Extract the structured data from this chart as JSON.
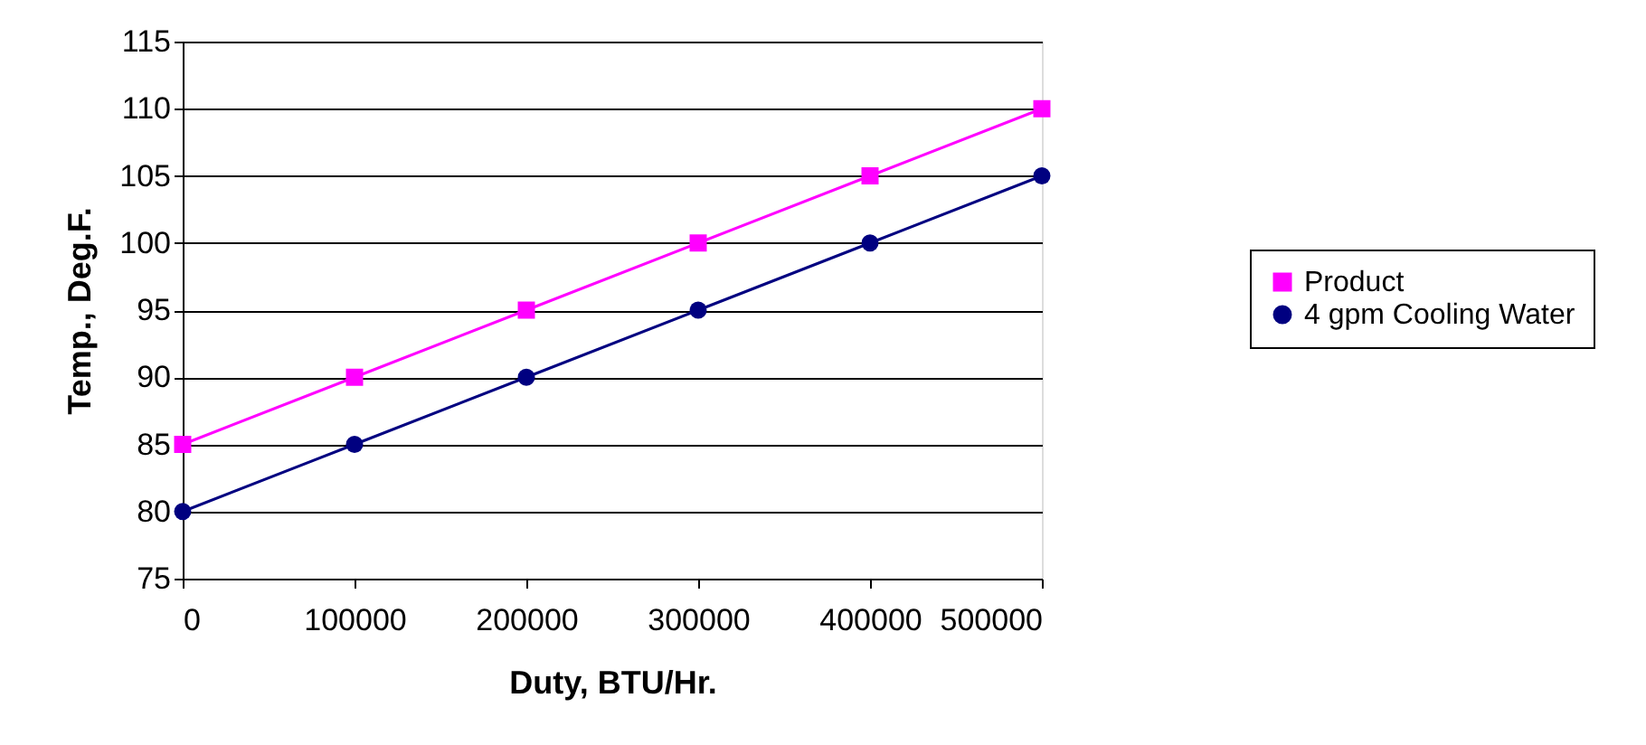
{
  "chart_data": {
    "type": "line",
    "xlabel": "Duty, BTU/Hr.",
    "ylabel": "Temp., Deg.F.",
    "x": [
      0,
      100000,
      200000,
      300000,
      400000,
      500000
    ],
    "series": [
      {
        "name": "Product",
        "color": "#ff00ff",
        "marker": "square",
        "values": [
          85,
          90,
          95,
          100,
          105,
          110
        ]
      },
      {
        "name": "4 gpm Cooling Water",
        "color": "#000080",
        "marker": "circle",
        "values": [
          80,
          85,
          90,
          95,
          100,
          105
        ]
      }
    ],
    "xlim": [
      0,
      500000
    ],
    "xticks": [
      0,
      100000,
      200000,
      300000,
      400000,
      500000
    ],
    "ylim": [
      75,
      115
    ],
    "yticks": [
      75,
      80,
      85,
      90,
      95,
      100,
      105,
      110,
      115
    ],
    "grid": "y",
    "legend": "right"
  }
}
